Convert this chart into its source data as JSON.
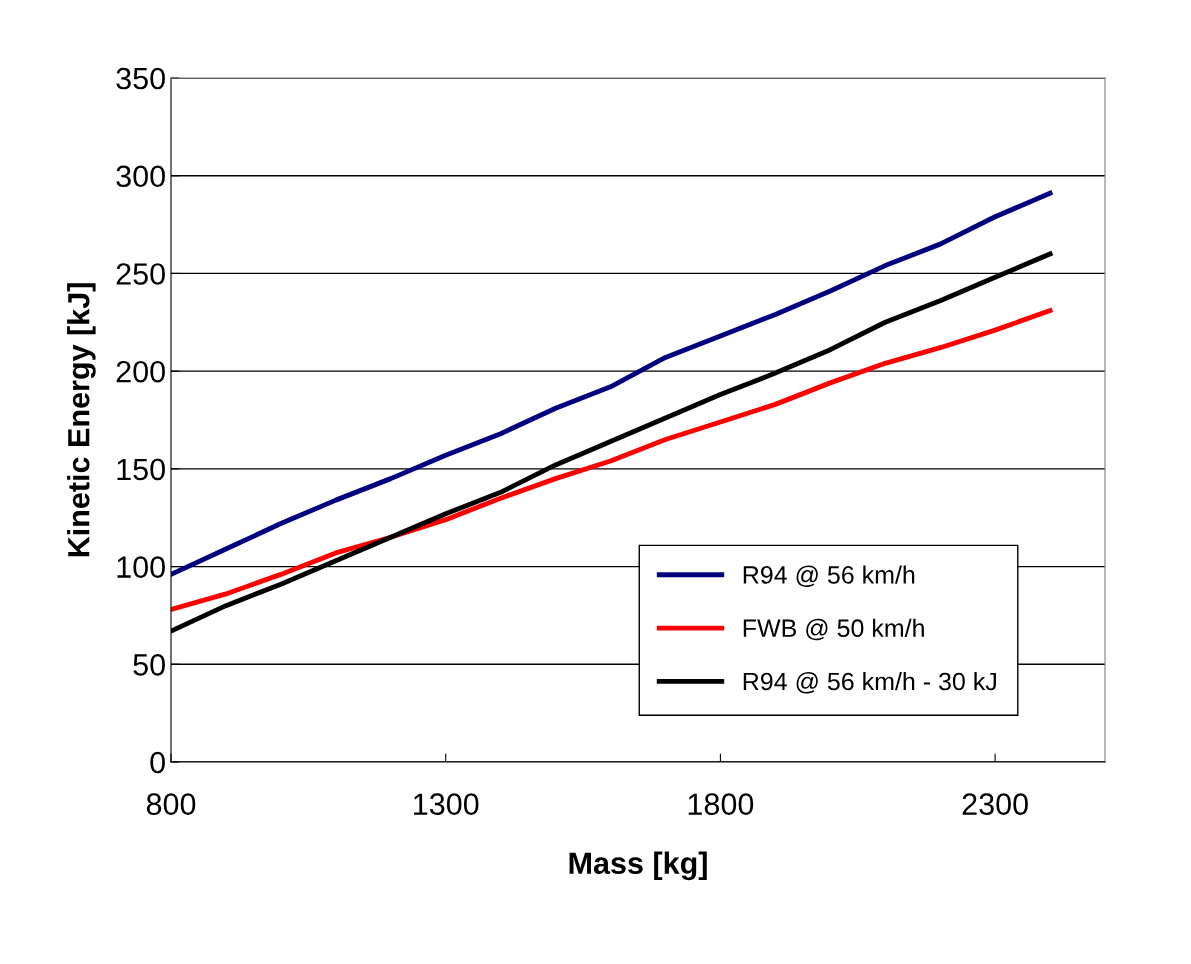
{
  "chart_data": {
    "type": "line",
    "xlabel": "Mass [kg]",
    "ylabel": "Kinetic Energy [kJ]",
    "x": [
      800,
      900,
      1000,
      1100,
      1200,
      1300,
      1400,
      1500,
      1600,
      1700,
      1800,
      1900,
      2000,
      2100,
      2200,
      2300,
      2400
    ],
    "series": [
      {
        "name": "R94 @ 56 km/h",
        "color": "#000080",
        "values": [
          96,
          109,
          122,
          134,
          145,
          157,
          168,
          181,
          192,
          207,
          218,
          229,
          241,
          254,
          265,
          279,
          291
        ]
      },
      {
        "name": "FWB @ 50 km/h",
        "color": "#ff0000",
        "values": [
          78,
          86,
          96,
          107,
          115,
          124,
          135,
          145,
          154,
          165,
          174,
          183,
          194,
          204,
          212,
          221,
          231
        ]
      },
      {
        "name": "R94 @ 56 km/h - 30 kJ",
        "color": "#000000",
        "values": [
          67,
          80,
          91,
          103,
          115,
          127,
          138,
          152,
          164,
          176,
          188,
          199,
          211,
          225,
          236,
          248,
          260
        ]
      }
    ],
    "xlim": [
      800,
      2500
    ],
    "xticks": [
      800,
      1300,
      1800,
      2300
    ],
    "ylim": [
      0,
      350
    ],
    "yticks": [
      0,
      50,
      100,
      150,
      200,
      250,
      300,
      350
    ],
    "grid": "y",
    "legend": "bottom right",
    "marker": "none",
    "line_style": "solid"
  }
}
